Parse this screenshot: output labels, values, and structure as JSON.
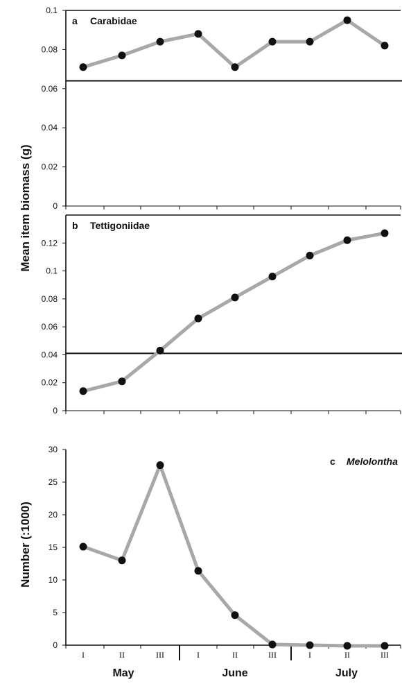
{
  "chart_data": [
    {
      "type": "line",
      "panel_letter": "a",
      "title": "Carabidae",
      "x": [
        "May I",
        "May II",
        "May III",
        "June I",
        "June II",
        "June III",
        "July I",
        "July II",
        "July III"
      ],
      "values": [
        0.071,
        0.077,
        0.084,
        0.088,
        0.071,
        0.084,
        0.084,
        0.095,
        0.082
      ],
      "ylim": [
        0,
        0.1
      ],
      "yticks": [
        "0",
        "0.02",
        "0.04",
        "0.06",
        "0.08",
        "0.1"
      ],
      "reference_line": 0.064,
      "line_color": "#a8a8a8",
      "marker_color": "#111111"
    },
    {
      "type": "line",
      "panel_letter": "b",
      "title": "Tettigoniidae",
      "x": [
        "May I",
        "May II",
        "May III",
        "June I",
        "June II",
        "June III",
        "July I",
        "July II",
        "July III"
      ],
      "values": [
        0.014,
        0.021,
        0.043,
        0.066,
        0.081,
        0.096,
        0.111,
        0.122,
        0.127
      ],
      "ylim": [
        0,
        0.14
      ],
      "yticks": [
        "0",
        "0.02",
        "0.04",
        "0.06",
        "0.08",
        "0.1",
        "0.12"
      ],
      "reference_line": 0.041,
      "line_color": "#a8a8a8",
      "marker_color": "#111111"
    },
    {
      "type": "line",
      "panel_letter": "c",
      "title": "Melolontha",
      "x": [
        "May I",
        "May II",
        "May III",
        "June I",
        "June II",
        "June III",
        "July I",
        "July II",
        "July III"
      ],
      "values": [
        15.1,
        13.0,
        27.6,
        11.4,
        4.6,
        0.1,
        0.0,
        -0.1,
        -0.1
      ],
      "ylim": [
        0,
        30
      ],
      "yticks": [
        "0",
        "5",
        "10",
        "15",
        "20",
        "25",
        "30"
      ],
      "line_color": "#a8a8a8",
      "marker_color": "#111111"
    }
  ],
  "shared_ylabel": "Mean item biomass (g)",
  "panel_c_ylabel": "Number (:1000)",
  "x_ticks": [
    "I",
    "II",
    "III",
    "I",
    "II",
    "III",
    "I",
    "II",
    "III"
  ],
  "months": [
    "May",
    "June",
    "July"
  ]
}
